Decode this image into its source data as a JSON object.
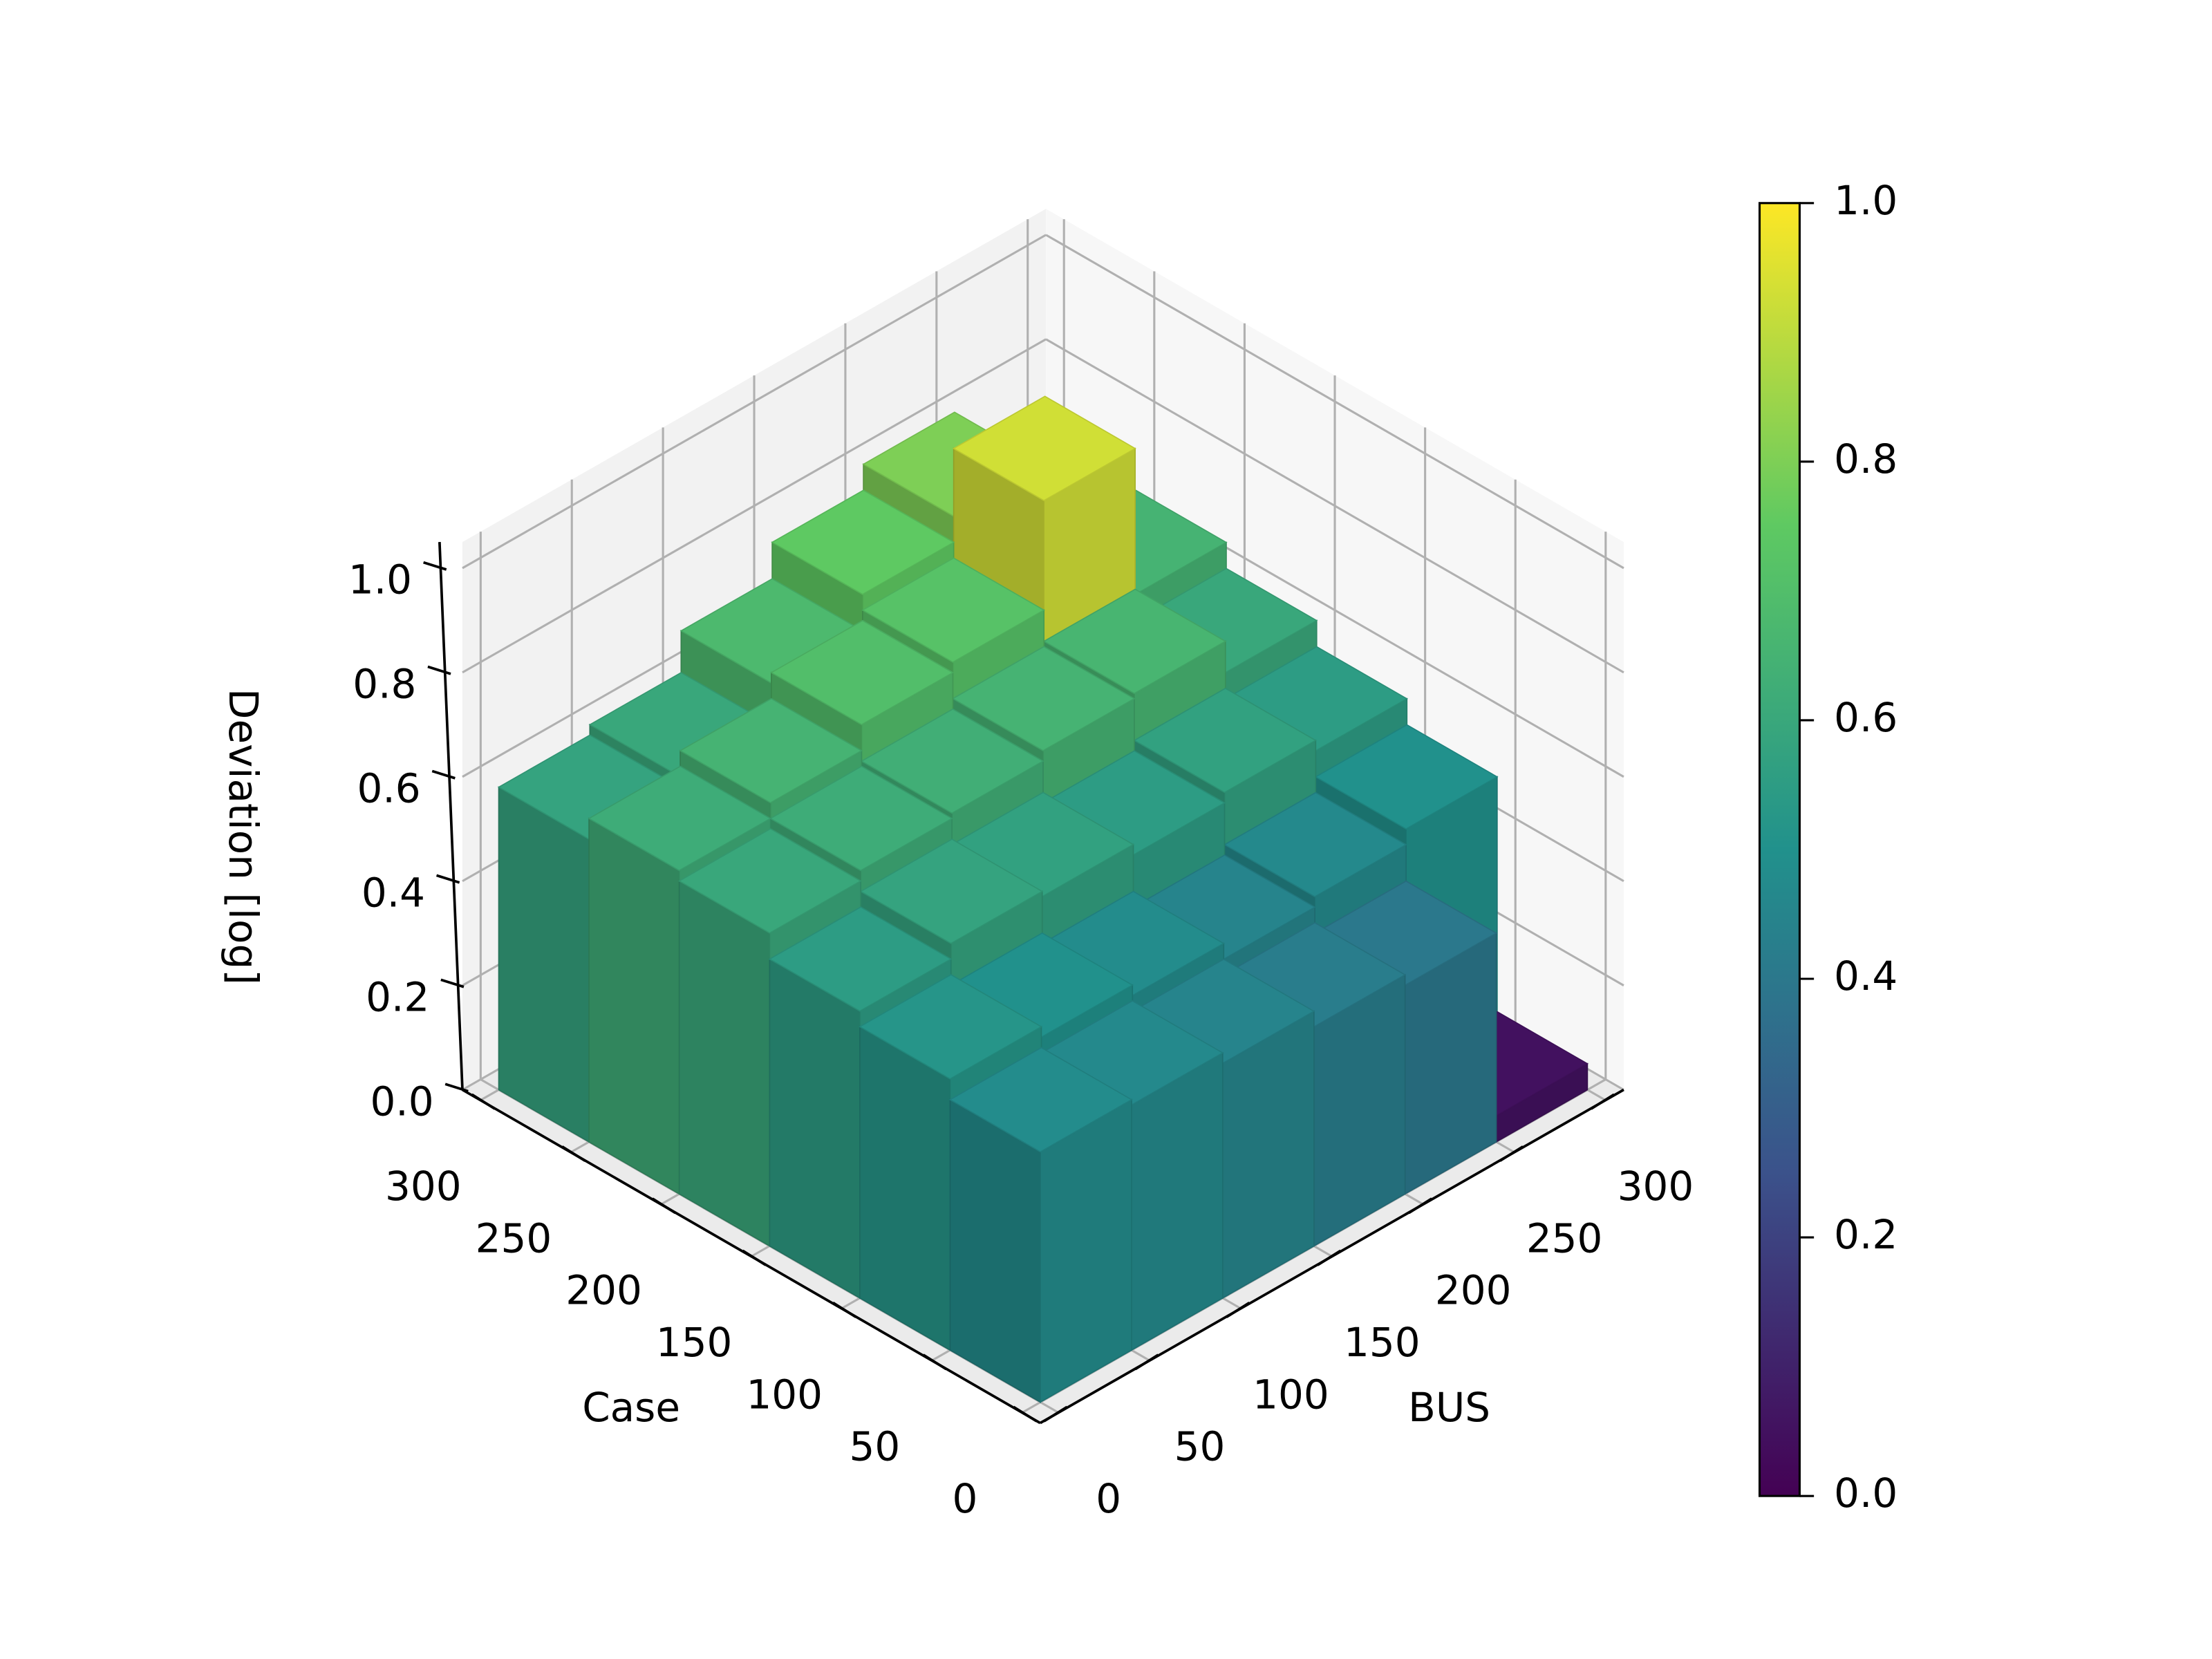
{
  "chart_data": {
    "type": "bar3d",
    "xlabel": "BUS",
    "ylabel": "Case",
    "zlabel": "Deviation [log]",
    "xbins": [
      0,
      50,
      100,
      150,
      200,
      250,
      300
    ],
    "ybins": [
      0,
      50,
      100,
      150,
      200,
      250,
      300
    ],
    "values": [
      [
        0.48,
        0.47,
        0.45,
        0.42,
        0.4,
        0.05
      ],
      [
        0.52,
        0.5,
        0.48,
        0.45,
        0.47,
        0.5
      ],
      [
        0.55,
        0.58,
        0.57,
        0.55,
        0.57,
        0.55
      ],
      [
        0.6,
        0.62,
        0.63,
        0.65,
        0.66,
        0.6
      ],
      [
        0.62,
        0.65,
        0.7,
        0.72,
        0.93,
        0.65
      ],
      [
        0.58,
        0.6,
        0.68,
        0.75,
        0.8,
        0.62
      ]
    ],
    "xlim": [
      -10,
      310
    ],
    "ylim": [
      -10,
      310
    ],
    "zlim": [
      0,
      1.05
    ],
    "xticks": [
      0,
      50,
      100,
      150,
      200,
      250,
      300
    ],
    "yticks": [
      0,
      50,
      100,
      150,
      200,
      250,
      300
    ],
    "zticks": [
      {
        "value": 0,
        "label": "0.0"
      },
      0.2,
      0.4,
      0.6,
      0.8,
      {
        "value": 1,
        "label": "1.0"
      }
    ],
    "grid": true,
    "colormap": "viridis",
    "colorbar": {
      "lim": [
        0,
        1
      ],
      "ticks": [
        {
          "value": 0,
          "label": "0.0"
        },
        0.2,
        0.4,
        0.6,
        0.8,
        {
          "value": 1,
          "label": "1.0"
        }
      ]
    }
  }
}
